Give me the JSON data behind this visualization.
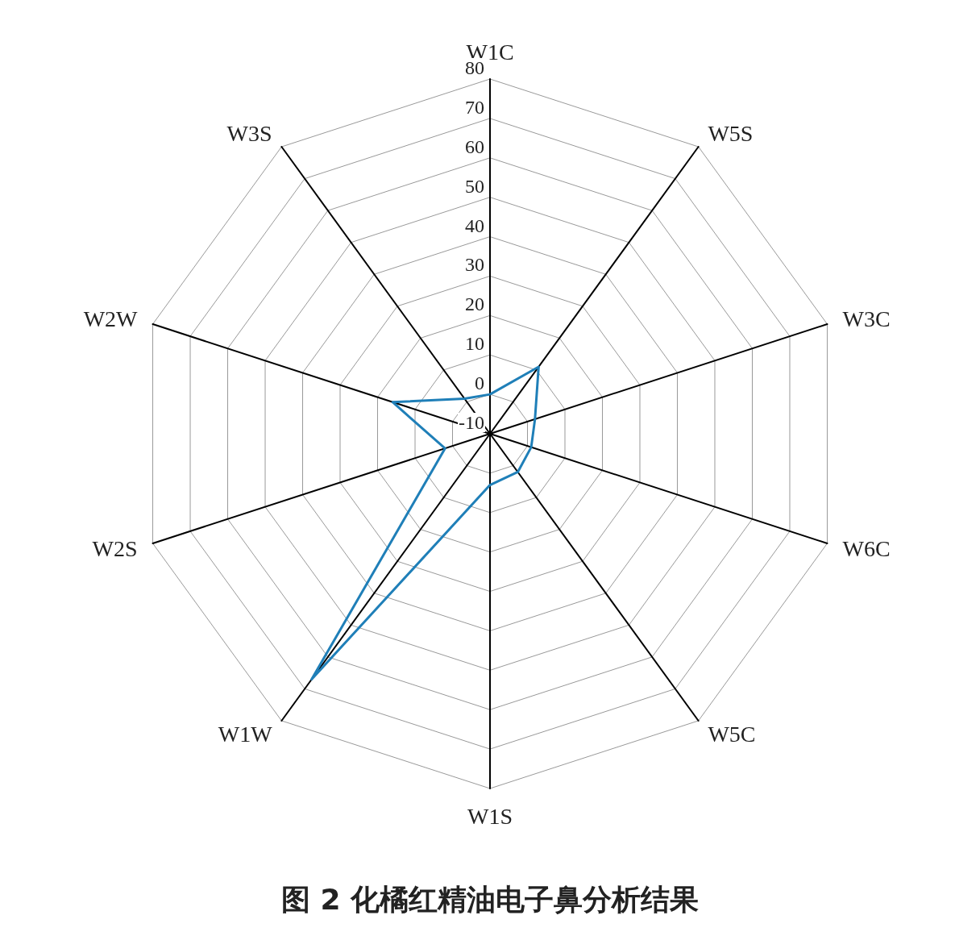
{
  "chart_data": {
    "type": "radar",
    "title": "图 2 化橘红精油电子鼻分析结果",
    "categories": [
      "W1C",
      "W5S",
      "W3C",
      "W6C",
      "W5C",
      "W1S",
      "W1W",
      "W2S",
      "W2W",
      "W3S"
    ],
    "series": [
      {
        "color": "#1f7fb8",
        "values": [
          0,
          11,
          2,
          1,
          2,
          3,
          67,
          2,
          16,
          1
        ]
      }
    ],
    "ylim": [
      -10,
      80
    ],
    "yticks": [
      -10,
      0,
      10,
      20,
      30,
      40,
      50,
      60,
      70,
      80
    ],
    "marker": "none",
    "line_style": "solid"
  }
}
